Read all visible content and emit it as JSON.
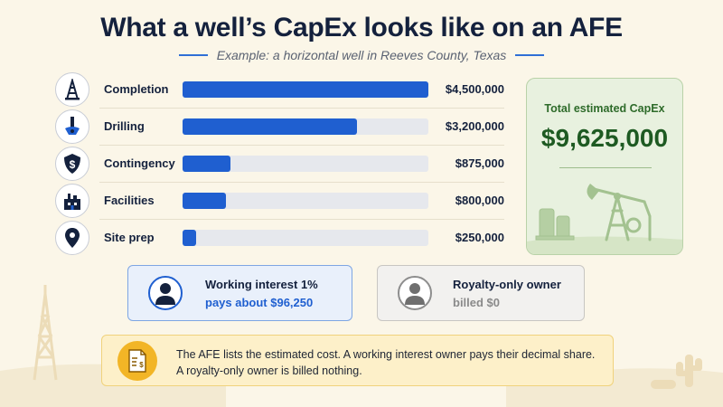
{
  "title": "What a well’s CapEx looks like on an AFE",
  "subtitle": "Example: a horizontal well in Reeves County, Texas",
  "chart_data": {
    "type": "bar",
    "orientation": "horizontal",
    "categories": [
      "Completion",
      "Drilling",
      "Contingency",
      "Facilities",
      "Site prep"
    ],
    "values": [
      4500000,
      3200000,
      875000,
      800000,
      250000
    ],
    "value_labels": [
      "$4,500,000",
      "$3,200,000",
      "$875,000",
      "$800,000",
      "$250,000"
    ],
    "xlim": [
      0,
      4500000
    ],
    "color": "#1f5fd0",
    "track_color": "#e6e8ed",
    "grid": false
  },
  "row_icons": [
    "drilling-rig-icon",
    "drill-bit-icon",
    "dollar-shield-icon",
    "facility-building-icon",
    "map-pin-icon"
  ],
  "total": {
    "label": "Total estimated CapEx",
    "value": "$9,625,000",
    "illustration": "pumpjack-icon"
  },
  "owners": {
    "working_interest": {
      "title": "Working interest 1%",
      "detail": "pays about $96,250",
      "icon": "person-icon"
    },
    "royalty_only": {
      "title": "Royalty-only owner",
      "detail": "billed $0",
      "icon": "person-icon"
    }
  },
  "note": {
    "line1": "The AFE lists the estimated cost. A working interest owner pays their decimal share.",
    "line2": "A royalty-only owner is billed nothing.",
    "icon": "invoice-dollar-icon"
  },
  "colors": {
    "background": "#fbf6e8",
    "accent_blue": "#1f5fd0",
    "accent_green": "#1e5a22",
    "note_yellow": "#f2b526"
  }
}
